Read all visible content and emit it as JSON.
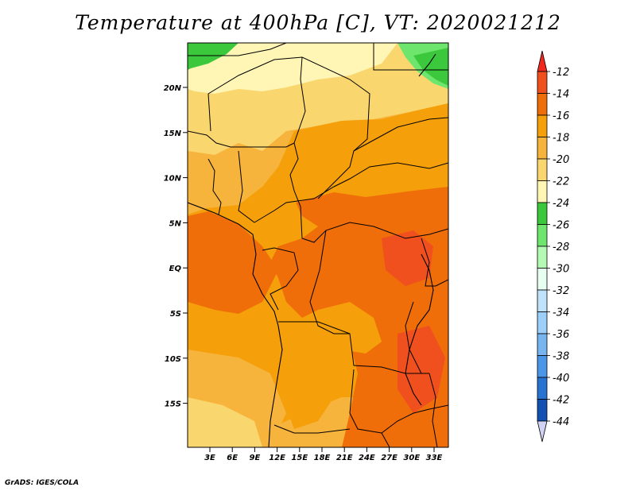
{
  "title": "Temperature at 400hPa [C], VT: 2020021212",
  "credit": "GrADS: IGES/COLA",
  "map": {
    "lat_labels": [
      "20N",
      "15N",
      "10N",
      "5N",
      "EQ",
      "5S",
      "10S",
      "15S"
    ],
    "lon_labels": [
      "3E",
      "6E",
      "9E",
      "12E",
      "15E",
      "18E",
      "21E",
      "24E",
      "27E",
      "30E",
      "33E"
    ]
  },
  "colorbar": {
    "labels": [
      "-12",
      "-14",
      "-16",
      "-18",
      "-20",
      "-22",
      "-24",
      "-26",
      "-28",
      "-30",
      "-32",
      "-34",
      "-36",
      "-38",
      "-40",
      "-42",
      "-44"
    ],
    "colors": [
      "#f0501e",
      "#f06e0a",
      "#f5a00a",
      "#f7b43c",
      "#fad76e",
      "#fff5b4",
      "#3cc83c",
      "#6ee66e",
      "#b4fab4",
      "#e6fff0",
      "#bfe2fa",
      "#9ccffa",
      "#78b4f0",
      "#4b96e6",
      "#2873d2",
      "#1450b4",
      "#0a1478"
    ],
    "over_color": "#f0281e",
    "under_color": "#d2d2f5"
  }
}
